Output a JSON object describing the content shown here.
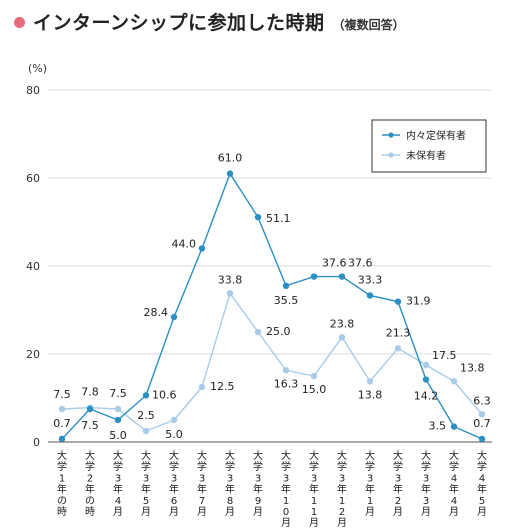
{
  "title_accent_color": "#e86a7a",
  "chart_data": {
    "type": "line",
    "title": "インターンシップに参加した時期",
    "subtitle": "（複数回答）",
    "ylabel": "(%)",
    "xlabel": "",
    "ylim": [
      0,
      80
    ],
    "yticks": [
      0,
      20,
      40,
      60,
      80
    ],
    "grid": true,
    "legend_position": "top-right",
    "categories": [
      "大学1年の時",
      "大学2年の時",
      "大学3年4月",
      "大学3年5月",
      "大学3年6月",
      "大学3年7月",
      "大学3年8月",
      "大学3年9月",
      "大学3年10月",
      "大学3年11月",
      "大学3年12月",
      "大学3年1月",
      "大学3年2月",
      "大学3年3月",
      "大学4年4月",
      "大学4年5月"
    ],
    "series": [
      {
        "name": "内々定保有者",
        "color": "#2b8fc4",
        "values": [
          0.7,
          7.5,
          5.0,
          10.6,
          28.4,
          44.0,
          61.0,
          51.1,
          35.5,
          37.6,
          37.6,
          33.3,
          31.9,
          14.2,
          3.5,
          0.7
        ],
        "labels": [
          "0.7",
          "7.5",
          "5.0",
          "10.6",
          "28.4",
          "44.0",
          "61.0",
          "51.1",
          "35.5",
          "37.6",
          "37.6",
          "33.3",
          "31.9",
          "14.2",
          "3.5",
          "0.7"
        ]
      },
      {
        "name": "未保有者",
        "color": "#a8cbe8",
        "values": [
          7.5,
          7.8,
          7.5,
          2.5,
          5.0,
          12.5,
          33.8,
          25.0,
          16.3,
          15.0,
          23.8,
          13.8,
          21.3,
          17.5,
          13.8,
          6.3
        ],
        "labels": [
          "7.5",
          "7.8",
          "7.5",
          "2.5",
          "5.0",
          "12.5",
          "33.8",
          "25.0",
          "16.3",
          "15.0",
          "23.8",
          "13.8",
          "21.3",
          "17.5",
          "13.8",
          "6.3"
        ]
      }
    ]
  }
}
